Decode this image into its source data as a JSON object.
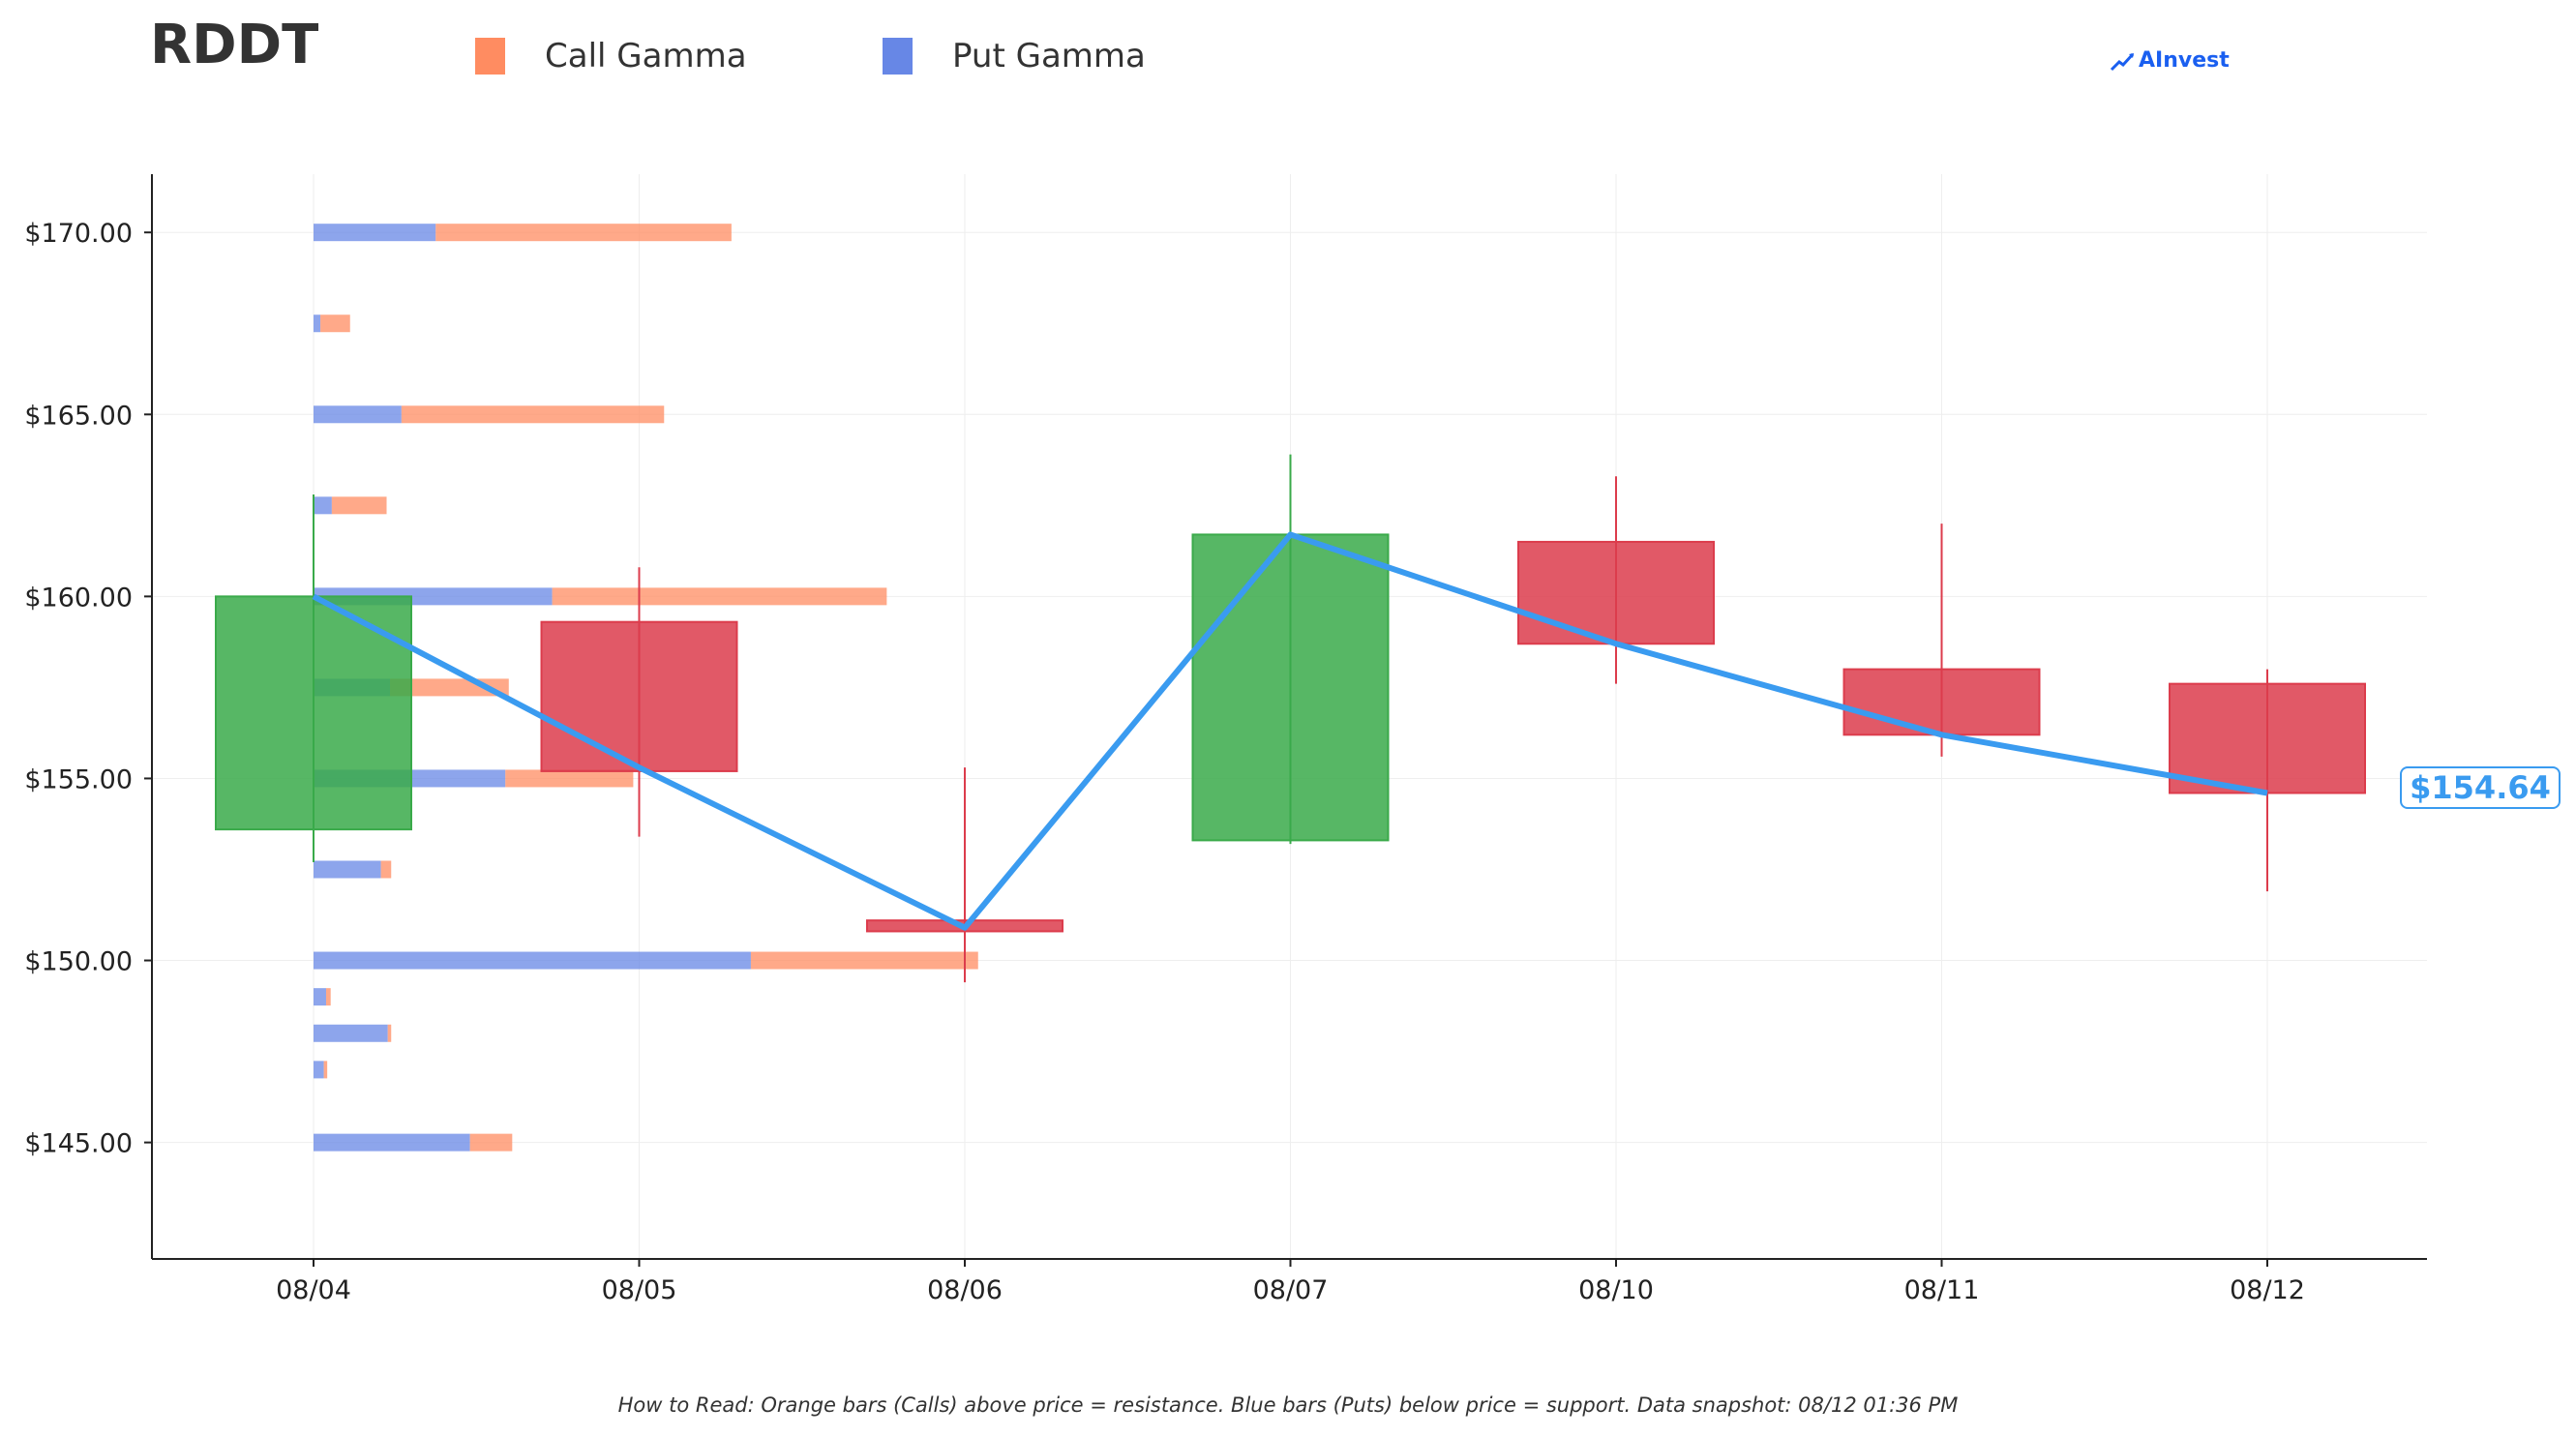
{
  "header": {
    "ticker": "RDDT",
    "brand": "AInvest",
    "brand_color": "#1a5ff0"
  },
  "legend": [
    {
      "label": "Call Gamma",
      "color": "#ff8c61"
    },
    {
      "label": "Put Gamma",
      "color": "#6787e6"
    }
  ],
  "footnote": "How to Read: Orange bars (Calls) above price = resistance. Blue bars (Puts) below price = support. Data snapshot: 08/12 01:36 PM",
  "current_price": {
    "label": "$154.64",
    "value": 154.64,
    "color": "#3a9bf0"
  },
  "chart_data": {
    "type": "candlestick",
    "title": "RDDT",
    "categories": [
      "08/04",
      "08/05",
      "08/06",
      "08/07",
      "08/10",
      "08/11",
      "08/12"
    ],
    "ylim": [
      141.8,
      171.6
    ],
    "yticks": [
      145,
      150,
      155,
      160,
      165,
      170
    ],
    "ytick_labels": [
      "$145.00",
      "$150.00",
      "$155.00",
      "$160.00",
      "$165.00",
      "$170.00"
    ],
    "grid": true,
    "up_color": "#3aaa4a",
    "down_color": "#dc3c4c",
    "candles": [
      {
        "date": "08/04",
        "open": 153.6,
        "high": 162.8,
        "low": 152.7,
        "close": 160.0
      },
      {
        "date": "08/05",
        "open": 159.3,
        "high": 160.8,
        "low": 153.4,
        "close": 155.2
      },
      {
        "date": "08/06",
        "open": 151.1,
        "high": 155.3,
        "low": 149.4,
        "close": 150.8
      },
      {
        "date": "08/07",
        "open": 153.3,
        "high": 163.9,
        "low": 153.2,
        "close": 161.7
      },
      {
        "date": "08/10",
        "open": 161.5,
        "high": 163.3,
        "low": 157.6,
        "close": 158.7
      },
      {
        "date": "08/11",
        "open": 158.0,
        "high": 162.0,
        "low": 155.6,
        "close": 156.2
      },
      {
        "date": "08/12",
        "open": 157.6,
        "high": 158.0,
        "low": 151.9,
        "close": 154.6
      }
    ],
    "price_line": {
      "color": "#3a9bf0",
      "points": [
        {
          "date": "08/04",
          "value": 160.0
        },
        {
          "date": "08/05",
          "value": 155.3
        },
        {
          "date": "08/06",
          "value": 150.9
        },
        {
          "date": "08/07",
          "value": 161.7
        },
        {
          "date": "08/10",
          "value": 158.7
        },
        {
          "date": "08/11",
          "value": 156.2
        },
        {
          "date": "08/12",
          "value": 154.6
        }
      ]
    },
    "gamma_scale_max": 1.0,
    "gamma_levels": [
      {
        "strike": 170.0,
        "put": 0.107,
        "call": 0.259
      },
      {
        "strike": 167.5,
        "put": 0.006,
        "call": 0.026
      },
      {
        "strike": 165.0,
        "put": 0.077,
        "call": 0.23
      },
      {
        "strike": 162.5,
        "put": 0.016,
        "call": 0.048
      },
      {
        "strike": 160.0,
        "put": 0.209,
        "call": 0.293
      },
      {
        "strike": 157.5,
        "put": 0.067,
        "call": 0.104
      },
      {
        "strike": 155.0,
        "put": 0.168,
        "call": 0.112
      },
      {
        "strike": 152.5,
        "put": 0.059,
        "call": 0.009
      },
      {
        "strike": 150.0,
        "put": 0.383,
        "call": 0.199
      },
      {
        "strike": 149.0,
        "put": 0.011,
        "call": 0.004
      },
      {
        "strike": 148.0,
        "put": 0.065,
        "call": 0.003
      },
      {
        "strike": 147.0,
        "put": 0.009,
        "call": 0.003
      },
      {
        "strike": 145.0,
        "put": 0.137,
        "call": 0.037
      }
    ]
  }
}
